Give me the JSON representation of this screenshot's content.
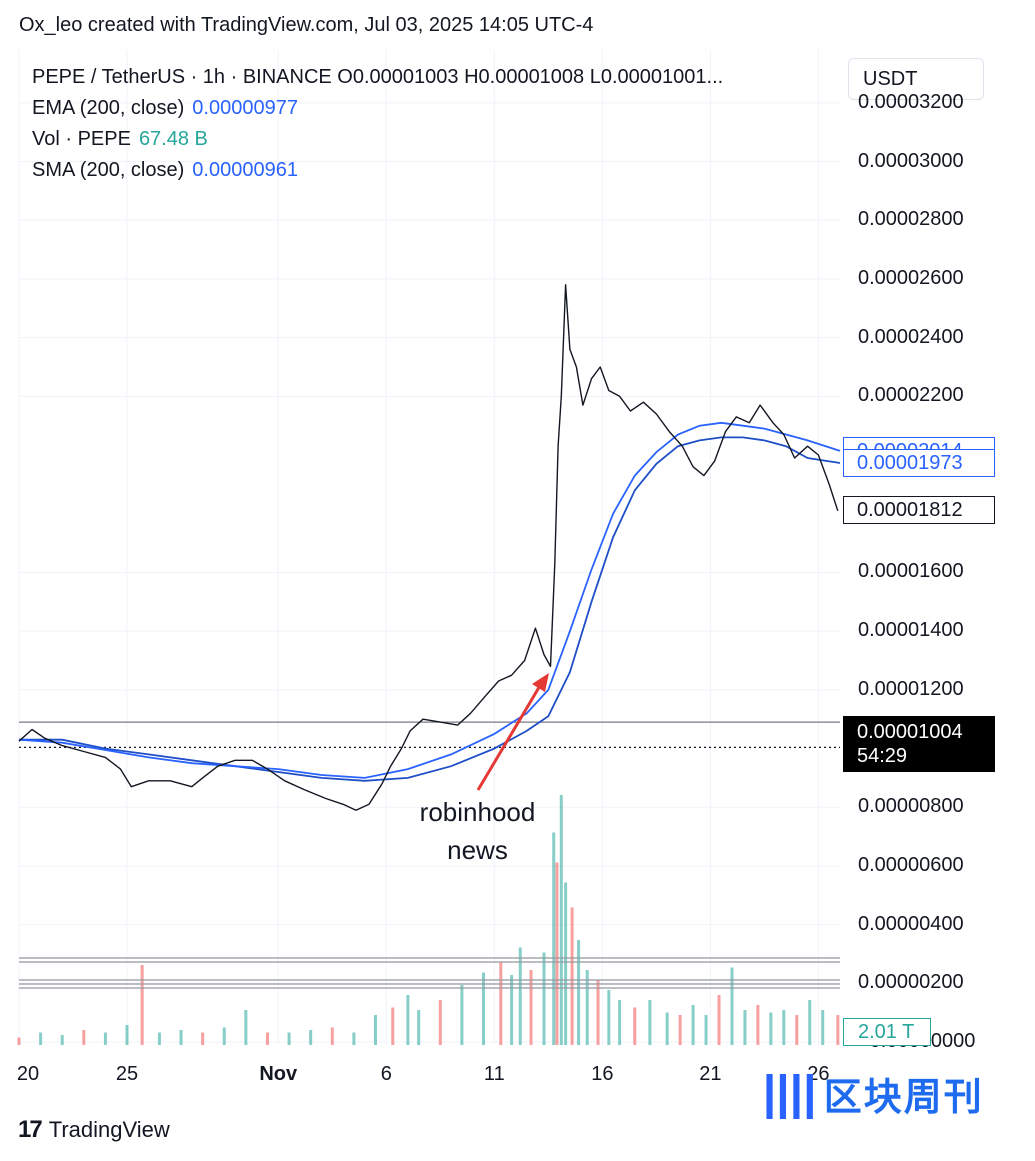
{
  "header": {
    "text": "Ox_leo created with TradingView.com, Jul 03, 2025 14:05 UTC-4"
  },
  "legend": {
    "symbol_line": "PEPE / TetherUS · 1h · BINANCE  O0.00001003  H0.00001008  L0.00001001...",
    "ema_label": "EMA (200, close)",
    "ema_value": "0.00000977",
    "vol_label": "Vol · PEPE",
    "vol_value": "67.48 B",
    "sma_label": "SMA (200, close)",
    "sma_value": "0.00000961"
  },
  "currency": "USDT",
  "annotation": {
    "line1": "robinhood",
    "line2": "news"
  },
  "footer": {
    "logo_mark": "17",
    "logo_text": "TradingView"
  },
  "watermark": {
    "text": "区块周刊"
  },
  "colors": {
    "price": "#131722",
    "ema": "#2962ff",
    "sma": "#1e4fc7",
    "vol_up": "#26a69a",
    "vol_down": "#ef5350",
    "arrow": "#e53935"
  },
  "chart_data": {
    "type": "line",
    "y_axis_ticks": [
      "0.00003200",
      "0.00003000",
      "0.00002800",
      "0.00002600",
      "0.00002400",
      "0.00002200",
      "0.00001600",
      "0.00001400",
      "0.00001200",
      "0.00000800",
      "0.00000600",
      "0.00000400",
      "0.00000200",
      "−0.00000000"
    ],
    "y_tick_values": [
      3.2e-05,
      3e-05,
      2.8e-05,
      2.6e-05,
      2.4e-05,
      2.2e-05,
      1.6e-05,
      1.4e-05,
      1.2e-05,
      8e-06,
      6e-06,
      4e-06,
      2e-06,
      0
    ],
    "ylim": [
      -1e-07,
      3.38e-05
    ],
    "x_ticks": [
      {
        "label": "20",
        "day": 20
      },
      {
        "label": "25",
        "day": 25
      },
      {
        "label": "Nov",
        "day": 32
      },
      {
        "label": "6",
        "day": 37
      },
      {
        "label": "11",
        "day": 42
      },
      {
        "label": "16",
        "day": 47
      },
      {
        "label": "21",
        "day": 52
      },
      {
        "label": "26",
        "day": 57
      }
    ],
    "xlim": [
      20,
      58
    ],
    "price_badges": {
      "ema": "0.00002014",
      "ema_value": 2.014e-05,
      "sma": "0.00001973",
      "sma_value": 1.973e-05,
      "last": "0.00001812",
      "last_value": 1.812e-05,
      "current": "0.00001004",
      "current_value": 1.004e-05,
      "countdown": "54:29",
      "volume": "2.01 T"
    },
    "horizontal_line": 1.09e-05,
    "dotted_line": 1.004e-05,
    "price_series": [
      [
        20.0,
        1.025e-05
      ],
      [
        20.6,
        1.065e-05
      ],
      [
        21.2,
        1.035e-05
      ],
      [
        22.0,
        1.01e-05
      ],
      [
        23.0,
        9.9e-06
      ],
      [
        24.0,
        9.7e-06
      ],
      [
        24.7,
        9.3e-06
      ],
      [
        25.2,
        8.7e-06
      ],
      [
        26.0,
        8.9e-06
      ],
      [
        27.0,
        8.9e-06
      ],
      [
        28.0,
        8.7e-06
      ],
      [
        28.5,
        9e-06
      ],
      [
        29.2,
        9.4e-06
      ],
      [
        30.0,
        9.6e-06
      ],
      [
        30.8,
        9.6e-06
      ],
      [
        31.5,
        9.3e-06
      ],
      [
        32.3,
        8.9e-06
      ],
      [
        33.2,
        8.6e-06
      ],
      [
        34.2,
        8.3e-06
      ],
      [
        35.0,
        8.1e-06
      ],
      [
        35.6,
        7.9e-06
      ],
      [
        36.2,
        8.1e-06
      ],
      [
        36.8,
        8.8e-06
      ],
      [
        37.2,
        9.4e-06
      ],
      [
        37.7,
        1e-05
      ],
      [
        38.1,
        1.06e-05
      ],
      [
        38.7,
        1.1e-05
      ],
      [
        39.5,
        1.09e-05
      ],
      [
        40.3,
        1.08e-05
      ],
      [
        40.9,
        1.12e-05
      ],
      [
        41.6,
        1.18e-05
      ],
      [
        42.2,
        1.23e-05
      ],
      [
        42.8,
        1.25e-05
      ],
      [
        43.4,
        1.3e-05
      ],
      [
        43.9,
        1.41e-05
      ],
      [
        44.3,
        1.32e-05
      ],
      [
        44.6,
        1.28e-05
      ],
      [
        44.8,
        1.63e-05
      ],
      [
        44.95,
        2.03e-05
      ],
      [
        45.1,
        2.2e-05
      ],
      [
        45.3,
        2.58e-05
      ],
      [
        45.5,
        2.36e-05
      ],
      [
        45.8,
        2.3e-05
      ],
      [
        46.1,
        2.17e-05
      ],
      [
        46.5,
        2.26e-05
      ],
      [
        46.9,
        2.3e-05
      ],
      [
        47.3,
        2.22e-05
      ],
      [
        47.8,
        2.2e-05
      ],
      [
        48.3,
        2.15e-05
      ],
      [
        48.9,
        2.18e-05
      ],
      [
        49.5,
        2.14e-05
      ],
      [
        50.1,
        2.08e-05
      ],
      [
        50.7,
        2.03e-05
      ],
      [
        51.2,
        1.96e-05
      ],
      [
        51.7,
        1.93e-05
      ],
      [
        52.2,
        1.98e-05
      ],
      [
        52.7,
        2.08e-05
      ],
      [
        53.2,
        2.13e-05
      ],
      [
        53.8,
        2.11e-05
      ],
      [
        54.3,
        2.17e-05
      ],
      [
        54.9,
        2.11e-05
      ],
      [
        55.4,
        2.07e-05
      ],
      [
        55.9,
        1.99e-05
      ],
      [
        56.5,
        2.03e-05
      ],
      [
        57.0,
        2e-05
      ],
      [
        57.5,
        1.9e-05
      ],
      [
        57.9,
        1.81e-05
      ]
    ],
    "ema_series": [
      [
        20.0,
        1.03e-05
      ],
      [
        22.0,
        1.02e-05
      ],
      [
        24.0,
        9.95e-06
      ],
      [
        26.0,
        9.7e-06
      ],
      [
        28.0,
        9.5e-06
      ],
      [
        30.0,
        9.4e-06
      ],
      [
        32.0,
        9.3e-06
      ],
      [
        34.0,
        9.1e-06
      ],
      [
        36.0,
        9e-06
      ],
      [
        38.0,
        9.3e-06
      ],
      [
        40.0,
        9.8e-06
      ],
      [
        42.0,
        1.05e-05
      ],
      [
        43.5,
        1.12e-05
      ],
      [
        44.5,
        1.2e-05
      ],
      [
        45.5,
        1.4e-05
      ],
      [
        46.5,
        1.61e-05
      ],
      [
        47.5,
        1.8e-05
      ],
      [
        48.5,
        1.93e-05
      ],
      [
        49.5,
        2.01e-05
      ],
      [
        50.5,
        2.07e-05
      ],
      [
        51.5,
        2.1e-05
      ],
      [
        52.5,
        2.11e-05
      ],
      [
        53.5,
        2.1e-05
      ],
      [
        54.5,
        2.09e-05
      ],
      [
        55.5,
        2.07e-05
      ],
      [
        56.5,
        2.05e-05
      ],
      [
        58.0,
        2.014e-05
      ]
    ],
    "sma_series": [
      [
        20.0,
        1.03e-05
      ],
      [
        22.0,
        1.03e-05
      ],
      [
        24.0,
        1e-05
      ],
      [
        26.0,
        9.8e-06
      ],
      [
        28.0,
        9.6e-06
      ],
      [
        30.0,
        9.4e-06
      ],
      [
        32.0,
        9.2e-06
      ],
      [
        34.0,
        9e-06
      ],
      [
        36.0,
        8.9e-06
      ],
      [
        38.0,
        9e-06
      ],
      [
        40.0,
        9.4e-06
      ],
      [
        42.0,
        1e-05
      ],
      [
        43.5,
        1.06e-05
      ],
      [
        44.5,
        1.11e-05
      ],
      [
        45.5,
        1.26e-05
      ],
      [
        46.5,
        1.5e-05
      ],
      [
        47.5,
        1.72e-05
      ],
      [
        48.5,
        1.88e-05
      ],
      [
        49.5,
        1.97e-05
      ],
      [
        50.5,
        2.03e-05
      ],
      [
        51.5,
        2.05e-05
      ],
      [
        52.5,
        2.06e-05
      ],
      [
        53.5,
        2.06e-05
      ],
      [
        54.5,
        2.05e-05
      ],
      [
        55.5,
        2.03e-05
      ],
      [
        56.5,
        1.99e-05
      ],
      [
        58.0,
        1.973e-05
      ]
    ],
    "volume_series": [
      [
        20,
        0.03
      ],
      [
        21,
        0.05
      ],
      [
        22,
        0.04
      ],
      [
        23,
        0.06
      ],
      [
        24,
        0.05
      ],
      [
        25,
        0.08
      ],
      [
        25.7,
        0.32
      ],
      [
        26.5,
        0.05
      ],
      [
        27.5,
        0.06
      ],
      [
        28.5,
        0.05
      ],
      [
        29.5,
        0.07
      ],
      [
        30.5,
        0.14
      ],
      [
        31.5,
        0.05
      ],
      [
        32.5,
        0.05
      ],
      [
        33.5,
        0.06
      ],
      [
        34.5,
        0.07
      ],
      [
        35.5,
        0.05
      ],
      [
        36.5,
        0.12
      ],
      [
        37.3,
        0.15
      ],
      [
        38.0,
        0.2
      ],
      [
        38.5,
        0.14
      ],
      [
        39.5,
        0.18
      ],
      [
        40.5,
        0.24
      ],
      [
        41.5,
        0.29
      ],
      [
        42.3,
        0.33
      ],
      [
        42.8,
        0.28
      ],
      [
        43.2,
        0.39
      ],
      [
        43.7,
        0.3
      ],
      [
        44.3,
        0.37
      ],
      [
        44.75,
        0.85
      ],
      [
        44.9,
        0.73
      ],
      [
        45.1,
        1.0
      ],
      [
        45.3,
        0.65
      ],
      [
        45.6,
        0.55
      ],
      [
        45.9,
        0.42
      ],
      [
        46.3,
        0.3
      ],
      [
        46.8,
        0.26
      ],
      [
        47.3,
        0.22
      ],
      [
        47.8,
        0.18
      ],
      [
        48.5,
        0.15
      ],
      [
        49.2,
        0.18
      ],
      [
        50.0,
        0.13
      ],
      [
        50.6,
        0.12
      ],
      [
        51.2,
        0.16
      ],
      [
        51.8,
        0.12
      ],
      [
        52.4,
        0.2
      ],
      [
        53.0,
        0.31
      ],
      [
        53.6,
        0.14
      ],
      [
        54.2,
        0.16
      ],
      [
        54.8,
        0.13
      ],
      [
        55.4,
        0.14
      ],
      [
        56.0,
        0.12
      ],
      [
        56.6,
        0.18
      ],
      [
        57.2,
        0.14
      ],
      [
        57.9,
        0.12
      ]
    ]
  }
}
